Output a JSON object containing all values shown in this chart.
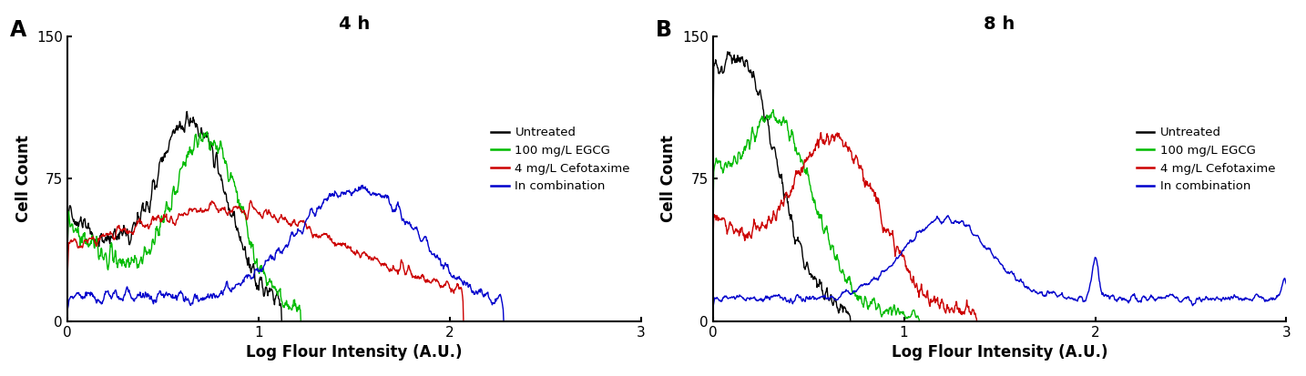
{
  "panel_A_title": "4 h",
  "panel_B_title": "8 h",
  "xlabel": "Log Flour Intensity (A.U.)",
  "ylabel": "Cell Count",
  "ylim": [
    0,
    150
  ],
  "yticks": [
    0,
    75,
    150
  ],
  "xlim": [
    0,
    3
  ],
  "xticks": [
    0,
    1,
    2,
    3
  ],
  "colors": {
    "untreated": "#000000",
    "egcg": "#00bb00",
    "cefotaxime": "#cc0000",
    "combination": "#0000cc"
  },
  "legend_labels": [
    "Untreated",
    "100 mg/L EGCG",
    "4 mg/L Cefotaxime",
    "In combination"
  ],
  "panel_label_A": "A",
  "panel_label_B": "B"
}
